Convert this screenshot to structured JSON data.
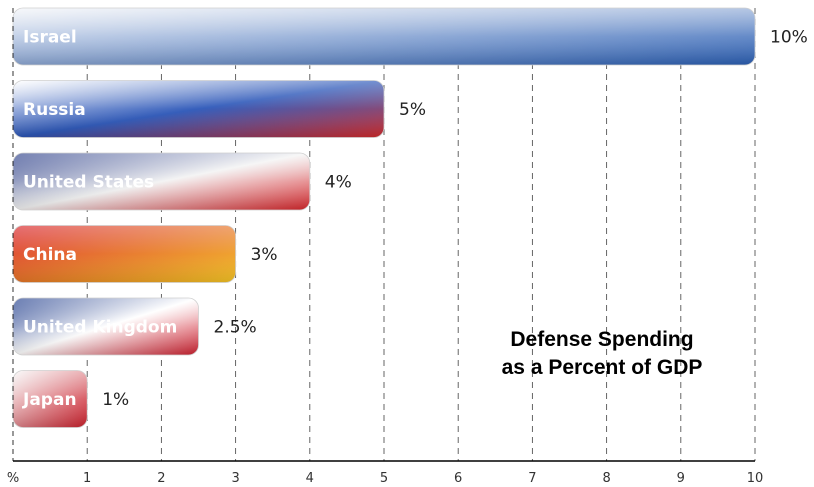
{
  "chart_data": {
    "type": "bar",
    "orientation": "horizontal",
    "title_lines": [
      "Defense Spending",
      "as a Percent of GDP"
    ],
    "categories": [
      "Israel",
      "Russia",
      "United States",
      "China",
      "United Kingdom",
      "Japan"
    ],
    "values": [
      10,
      5,
      4,
      3,
      2.5,
      1
    ],
    "value_labels": [
      "10%",
      "5%",
      "4%",
      "3%",
      "2.5%",
      "1%"
    ],
    "x_axis_unit_label": "%",
    "x_ticks": [
      "1",
      "2",
      "3",
      "4",
      "5",
      "6",
      "7",
      "8",
      "9",
      "10"
    ],
    "xlim": [
      0,
      10
    ],
    "grid": "vertical dashed",
    "title_placement": "lower-right",
    "bar_colors": {
      "Israel": [
        "#f2f4f8",
        "#2b5fb4"
      ],
      "Russia": [
        "#ffffff",
        "#2b56b8",
        "#d42a2a"
      ],
      "United States": [
        "#2c3f8a",
        "#f3f3f3",
        "#d8262b"
      ],
      "China": [
        "#d8232a",
        "#f6c623"
      ],
      "United Kingdom": [
        "#1f3c8c",
        "#ffffff",
        "#cf1f2e"
      ],
      "Japan": [
        "#f6f6f6",
        "#cc1f2b"
      ]
    }
  }
}
